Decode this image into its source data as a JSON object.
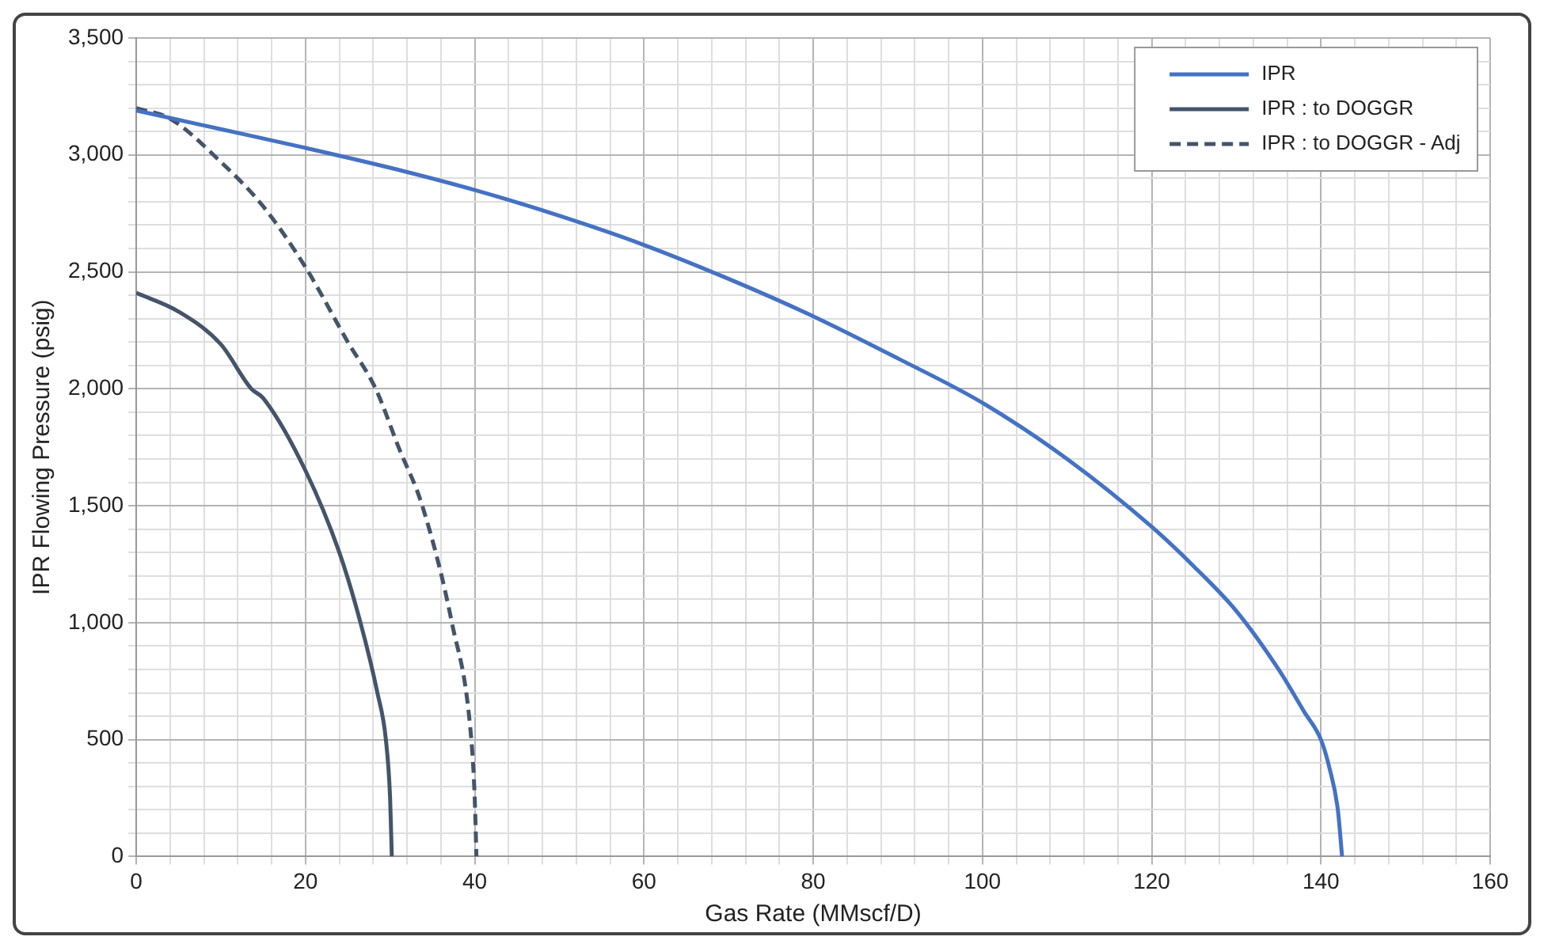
{
  "chart_data": {
    "type": "line",
    "xlabel": "Gas Rate (MMscf/D)",
    "ylabel": "IPR Flowing Pressure (psig)",
    "xlim": [
      0,
      160
    ],
    "ylim": [
      0,
      3500
    ],
    "xticks": [
      0,
      {
        "value": 4,
        "label": null
      },
      {
        "value": 8,
        "label": null
      },
      {
        "value": 12,
        "label": null
      },
      {
        "value": 16,
        "label": null
      },
      20,
      {
        "value": 24,
        "label": null
      },
      {
        "value": 28,
        "label": null
      },
      {
        "value": 32,
        "label": null
      },
      {
        "value": 36,
        "label": null
      },
      40,
      {
        "value": 44,
        "label": null
      },
      {
        "value": 48,
        "label": null
      },
      {
        "value": 52,
        "label": null
      },
      {
        "value": 56,
        "label": null
      },
      60,
      {
        "value": 64,
        "label": null
      },
      {
        "value": 68,
        "label": null
      },
      {
        "value": 72,
        "label": null
      },
      {
        "value": 76,
        "label": null
      },
      80,
      {
        "value": 84,
        "label": null
      },
      {
        "value": 88,
        "label": null
      },
      {
        "value": 92,
        "label": null
      },
      {
        "value": 96,
        "label": null
      },
      100,
      {
        "value": 104,
        "label": null
      },
      {
        "value": 108,
        "label": null
      },
      {
        "value": 112,
        "label": null
      },
      {
        "value": 116,
        "label": null
      },
      120,
      {
        "value": 124,
        "label": null
      },
      {
        "value": 128,
        "label": null
      },
      {
        "value": 132,
        "label": null
      },
      {
        "value": 136,
        "label": null
      },
      140,
      {
        "value": 144,
        "label": null
      },
      {
        "value": 148,
        "label": null
      },
      {
        "value": 152,
        "label": null
      },
      {
        "value": 156,
        "label": null
      },
      160
    ],
    "yticks": [
      0,
      {
        "value": 100,
        "label": null
      },
      {
        "value": 200,
        "label": null
      },
      {
        "value": 300,
        "label": null
      },
      {
        "value": 400,
        "label": null
      },
      500,
      {
        "value": 600,
        "label": null
      },
      {
        "value": 700,
        "label": null
      },
      {
        "value": 800,
        "label": null
      },
      {
        "value": 900,
        "label": null
      },
      {
        "value": 1000,
        "label": "1,000"
      },
      {
        "value": 1100,
        "label": null
      },
      {
        "value": 1200,
        "label": null
      },
      {
        "value": 1300,
        "label": null
      },
      {
        "value": 1400,
        "label": null
      },
      {
        "value": 1500,
        "label": "1,500"
      },
      {
        "value": 1600,
        "label": null
      },
      {
        "value": 1700,
        "label": null
      },
      {
        "value": 1800,
        "label": null
      },
      {
        "value": 1900,
        "label": null
      },
      {
        "value": 2000,
        "label": "2,000"
      },
      {
        "value": 2100,
        "label": null
      },
      {
        "value": 2200,
        "label": null
      },
      {
        "value": 2300,
        "label": null
      },
      {
        "value": 2400,
        "label": null
      },
      {
        "value": 2500,
        "label": "2,500"
      },
      {
        "value": 2600,
        "label": null
      },
      {
        "value": 2700,
        "label": null
      },
      {
        "value": 2800,
        "label": null
      },
      {
        "value": 2900,
        "label": null
      },
      {
        "value": 3000,
        "label": "3,000"
      },
      {
        "value": 3100,
        "label": null
      },
      {
        "value": 3200,
        "label": null
      },
      {
        "value": 3300,
        "label": null
      },
      {
        "value": 3400,
        "label": null
      },
      {
        "value": 3500,
        "label": "3,500"
      }
    ],
    "grid": true,
    "legend": "top right",
    "marker": "none",
    "series": [
      {
        "name": "IPR",
        "color": "#4472c4",
        "line_style": "solid",
        "x": [
          0,
          10,
          20,
          30,
          40,
          50,
          60,
          70,
          80,
          90,
          100,
          110,
          120,
          125,
          130,
          135,
          138,
          140,
          141,
          142,
          142.5
        ],
        "values": [
          3190,
          3110,
          3030,
          2945,
          2850,
          2740,
          2615,
          2470,
          2310,
          2130,
          1940,
          1700,
          1410,
          1240,
          1050,
          800,
          620,
          500,
          380,
          200,
          0
        ]
      },
      {
        "name": "IPR : to DOGGR",
        "color": "#44546a",
        "line_style": "solid",
        "x": [
          0,
          5,
          10,
          13.6,
          15,
          20,
          24,
          26.5,
          28.5,
          29.5,
          30,
          30.2
        ],
        "values": [
          2410,
          2330,
          2190,
          2000,
          1960,
          1650,
          1300,
          1000,
          700,
          500,
          250,
          0
        ]
      },
      {
        "name": "IPR : to DOGGR - Adj",
        "color": "#44546a",
        "line_style": "dashed",
        "x": [
          0,
          4,
          10,
          15,
          20,
          25,
          28.3,
          31,
          33.8,
          37.3,
          39.6,
          40,
          40.2
        ],
        "values": [
          3200,
          3155,
          2970,
          2780,
          2520,
          2200,
          2000,
          1750,
          1500,
          1000,
          500,
          250,
          0
        ]
      }
    ]
  }
}
